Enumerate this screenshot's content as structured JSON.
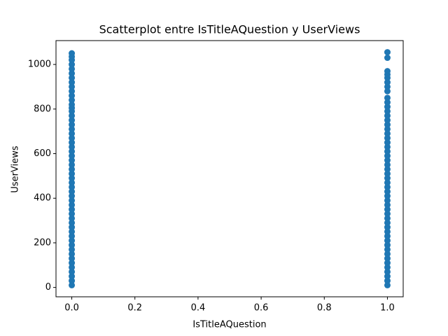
{
  "chart_data": {
    "type": "scatter",
    "title": "Scatterplot entre IsTitleAQuestion y UserViews",
    "xlabel": "IsTitleAQuestion",
    "ylabel": "UserViews",
    "series": [
      {
        "color": "#1f77b4",
        "x": [
          0,
          0,
          0,
          0,
          0,
          0,
          0,
          0,
          0,
          0,
          0,
          0,
          0,
          0,
          0,
          0,
          0,
          0,
          0,
          0,
          0,
          0,
          0,
          0,
          0,
          0,
          0,
          0,
          0,
          0,
          0,
          0,
          0,
          0,
          0,
          0,
          0,
          0,
          0,
          0,
          0,
          0,
          0,
          0,
          0,
          0,
          0,
          0,
          0,
          0,
          0,
          0,
          0,
          0,
          1,
          1,
          1,
          1,
          1,
          1,
          1,
          1,
          1,
          1,
          1,
          1,
          1,
          1,
          1,
          1,
          1,
          1,
          1,
          1,
          1,
          1,
          1,
          1,
          1,
          1,
          1,
          1,
          1,
          1,
          1,
          1,
          1,
          1,
          1,
          1,
          1,
          1,
          1,
          1,
          1,
          1,
          1,
          1,
          1,
          1,
          1,
          1,
          1,
          1,
          1
        ],
        "y": [
          10,
          30,
          50,
          70,
          90,
          110,
          130,
          150,
          170,
          190,
          210,
          230,
          250,
          270,
          290,
          310,
          330,
          350,
          370,
          390,
          410,
          430,
          450,
          470,
          490,
          510,
          530,
          550,
          570,
          590,
          610,
          630,
          650,
          670,
          690,
          710,
          730,
          750,
          770,
          790,
          805,
          820,
          840,
          860,
          880,
          900,
          920,
          940,
          960,
          980,
          1000,
          1020,
          1035,
          1050,
          10,
          30,
          50,
          70,
          90,
          110,
          130,
          150,
          170,
          190,
          210,
          230,
          250,
          270,
          290,
          310,
          330,
          350,
          370,
          390,
          410,
          430,
          450,
          470,
          490,
          510,
          530,
          550,
          570,
          590,
          610,
          630,
          650,
          670,
          690,
          710,
          730,
          750,
          770,
          790,
          810,
          830,
          850,
          880,
          900,
          920,
          940,
          955,
          970,
          1030,
          1055
        ]
      }
    ],
    "xlim": [
      -0.05,
      1.05
    ],
    "ylim": [
      -42,
      1107
    ],
    "xticks": [
      {
        "value": 0,
        "label": "0.0"
      },
      0.2,
      0.4,
      0.6,
      0.8,
      {
        "value": 1,
        "label": "1.0"
      }
    ],
    "yticks": [
      0,
      200,
      400,
      600,
      800,
      1000
    ]
  }
}
